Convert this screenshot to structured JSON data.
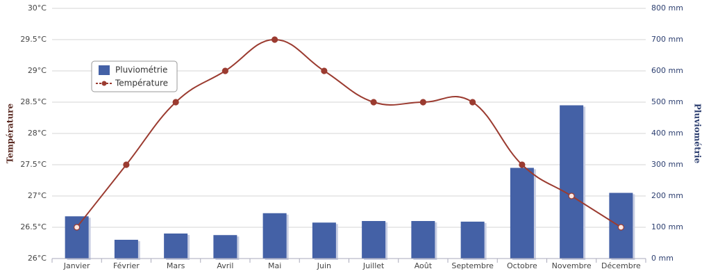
{
  "chart_data": {
    "type": "bar-line",
    "categories": [
      "Janvier",
      "Février",
      "Mars",
      "Avril",
      "Mai",
      "Juin",
      "Juillet",
      "Août",
      "Septembre",
      "Octobre",
      "Novembre",
      "Décembre"
    ],
    "series": [
      {
        "name": "Pluviométrie",
        "type": "bar",
        "axis": "y2",
        "color": "#4461a6",
        "values": [
          135,
          60,
          80,
          75,
          145,
          115,
          120,
          120,
          118,
          290,
          490,
          210
        ]
      },
      {
        "name": "Température",
        "type": "line",
        "axis": "y",
        "color": "#9b3b30",
        "values": [
          26.5,
          27.5,
          28.5,
          29,
          29.5,
          29,
          28.5,
          28.5,
          28.5,
          27.5,
          27,
          26.5
        ]
      }
    ],
    "ylabel": "Température",
    "y2label": "Pluviométrie",
    "ylim": [
      26,
      30
    ],
    "yticks": [
      {
        "value": 26,
        "label": "26°C"
      },
      {
        "value": 26.5,
        "label": "26.5°C"
      },
      {
        "value": 27,
        "label": "27°C"
      },
      {
        "value": 27.5,
        "label": "27.5°C"
      },
      {
        "value": 28,
        "label": "28°C"
      },
      {
        "value": 28.5,
        "label": "28.5°C"
      },
      {
        "value": 29,
        "label": "29°C"
      },
      {
        "value": 29.5,
        "label": "29.5°C"
      },
      {
        "value": 30,
        "label": "30°C"
      }
    ],
    "y2lim": [
      0,
      800
    ],
    "y2ticks": [
      {
        "value": 0,
        "label": "0 mm"
      },
      {
        "value": 100,
        "label": "100 mm"
      },
      {
        "value": 200,
        "label": "200 mm"
      },
      {
        "value": 300,
        "label": "300 mm"
      },
      {
        "value": 400,
        "label": "400 mm"
      },
      {
        "value": 500,
        "label": "500 mm"
      },
      {
        "value": 600,
        "label": "600 mm"
      },
      {
        "value": 700,
        "label": "700 mm"
      },
      {
        "value": 800,
        "label": "800 mm"
      }
    ],
    "grid": true,
    "legend": "upper left"
  }
}
